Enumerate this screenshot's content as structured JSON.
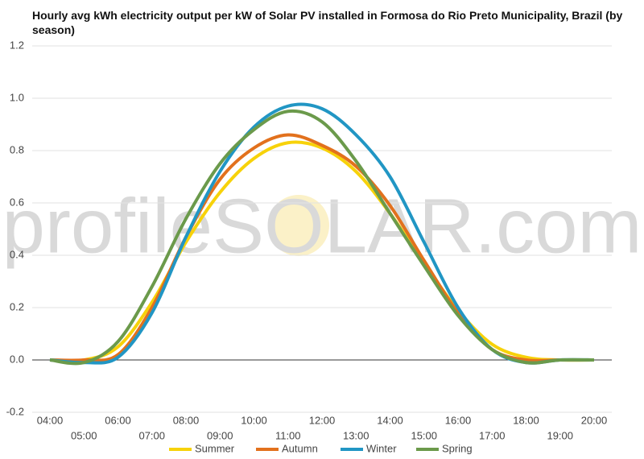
{
  "chart_data": {
    "type": "line",
    "title": "Hourly avg kWh electricity output per kW of Solar PV installed in Formosa do Rio Preto Municipality, Brazil (by season)",
    "watermark": "profileSOLAR.com",
    "categories": [
      "04:00",
      "05:00",
      "06:00",
      "07:00",
      "08:00",
      "09:00",
      "10:00",
      "11:00",
      "12:00",
      "13:00",
      "14:00",
      "15:00",
      "16:00",
      "17:00",
      "18:00",
      "19:00",
      "20:00"
    ],
    "series": [
      {
        "name": "Summer",
        "color": "#f7d20a",
        "values": [
          0,
          0,
          0.05,
          0.22,
          0.45,
          0.64,
          0.77,
          0.83,
          0.81,
          0.72,
          0.56,
          0.37,
          0.19,
          0.06,
          0.01,
          0,
          0
        ]
      },
      {
        "name": "Autumn",
        "color": "#e2711d",
        "values": [
          0,
          0,
          0.02,
          0.2,
          0.47,
          0.69,
          0.81,
          0.86,
          0.82,
          0.74,
          0.59,
          0.38,
          0.18,
          0.04,
          0,
          0,
          0
        ]
      },
      {
        "name": "Winter",
        "color": "#2196c4",
        "values": [
          0,
          -0.01,
          0.01,
          0.18,
          0.47,
          0.72,
          0.89,
          0.97,
          0.96,
          0.86,
          0.7,
          0.45,
          0.2,
          0.04,
          -0.01,
          0,
          0
        ]
      },
      {
        "name": "Spring",
        "color": "#6b9a4b",
        "values": [
          0,
          -0.01,
          0.07,
          0.28,
          0.54,
          0.75,
          0.88,
          0.95,
          0.91,
          0.76,
          0.56,
          0.36,
          0.17,
          0.04,
          -0.01,
          0,
          0
        ]
      }
    ],
    "ylim": [
      -0.2,
      1.2
    ],
    "yticks": [
      -0.2,
      {
        "value": 0,
        "label": "0.0"
      },
      0.2,
      0.4,
      0.6,
      0.8,
      {
        "value": 1,
        "label": "1.0"
      },
      1.2
    ],
    "grid": true,
    "legend": "bottom"
  }
}
